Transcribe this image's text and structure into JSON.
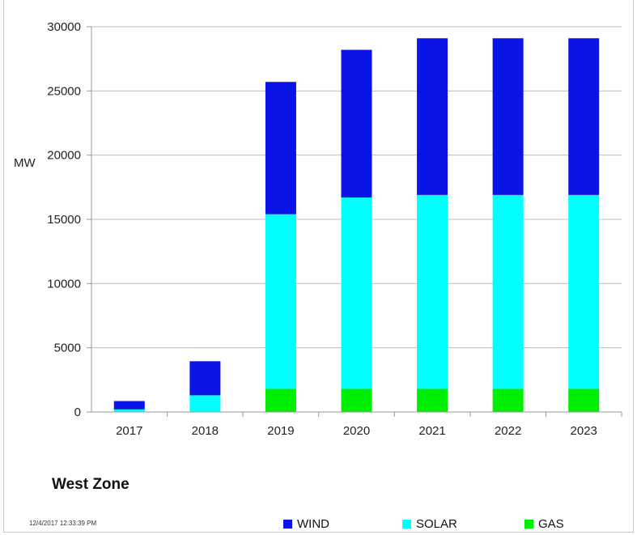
{
  "chart_data": {
    "type": "bar",
    "stacked": true,
    "categories": [
      "2017",
      "2018",
      "2019",
      "2020",
      "2021",
      "2022",
      "2023"
    ],
    "series": [
      {
        "name": "GAS",
        "color": "#00ee00",
        "values": [
          0,
          0,
          1800,
          1800,
          1800,
          1800,
          1800
        ]
      },
      {
        "name": "SOLAR",
        "color": "#00ffff",
        "values": [
          200,
          1300,
          13600,
          14900,
          15100,
          15100,
          15100
        ]
      },
      {
        "name": "WIND",
        "color": "#0a14e6",
        "values": [
          650,
          2650,
          10300,
          11500,
          12200,
          12200,
          12200
        ]
      }
    ],
    "ylabel": "MW",
    "ylim": [
      0,
      30000
    ],
    "yticks": [
      "0",
      "5000",
      "10000",
      "15000",
      "20000",
      "25000",
      "30000"
    ],
    "grid": true,
    "legend_order": [
      "WIND",
      "SOLAR",
      "GAS"
    ]
  },
  "title": "West Zone",
  "timestamp": "12/4/2017 12:33:39 PM"
}
